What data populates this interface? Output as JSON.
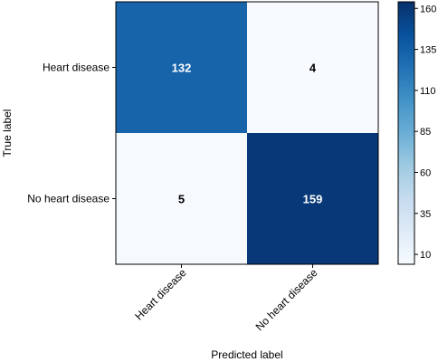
{
  "chart_data": {
    "type": "heatmap",
    "x_categories": [
      "Heart disease",
      "No heart disease"
    ],
    "y_categories": [
      "Heart disease",
      "No heart disease"
    ],
    "values": [
      [
        132,
        4
      ],
      [
        5,
        159
      ]
    ],
    "xlabel": "Predicted label",
    "ylabel": "True label",
    "colormap": "Blues",
    "colorbar": {
      "min": 4,
      "max": 164,
      "ticks": [
        10,
        35,
        60,
        85,
        110,
        135,
        160
      ]
    },
    "colors": {
      "low": "#f7fbff",
      "mid": "#6baed6",
      "high": "#08306b"
    }
  }
}
